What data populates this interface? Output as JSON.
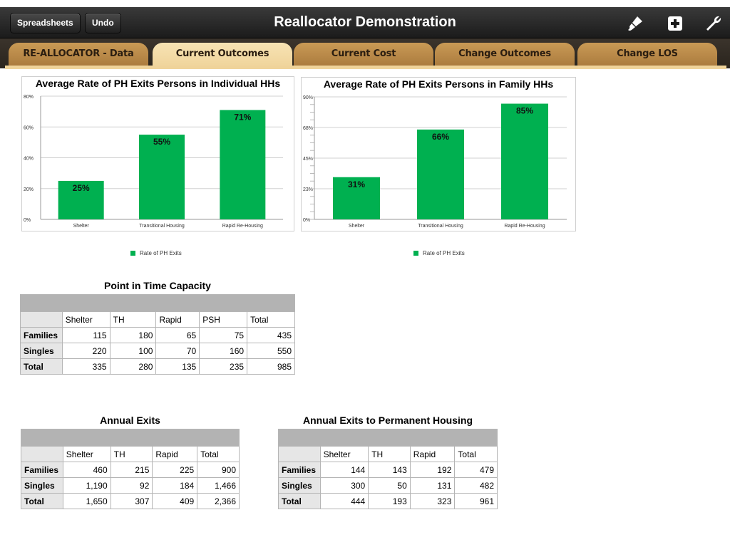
{
  "toolbar": {
    "spreadsheets_label": "Spreadsheets",
    "undo_label": "Undo",
    "title": "Reallocator Demonstration",
    "icons": [
      "paintbrush-icon",
      "add-icon",
      "wrench-icon"
    ]
  },
  "tabs": [
    {
      "label": "RE-ALLOCATOR - Data",
      "active": false
    },
    {
      "label": "Current Outcomes",
      "active": true
    },
    {
      "label": "Current Cost",
      "active": false
    },
    {
      "label": "Change Outcomes",
      "active": false
    },
    {
      "label": "Change LOS",
      "active": false
    }
  ],
  "chart_data": [
    {
      "type": "bar",
      "title": "Average Rate of PH Exits Persons in Individual HHs",
      "categories": [
        "Shelter",
        "Transitional Housing",
        "Rapid Re-Housing"
      ],
      "series": [
        {
          "name": "Rate of PH Exits",
          "values": [
            25,
            55,
            71
          ],
          "color": "#00b050"
        }
      ],
      "data_labels": [
        "25%",
        "55%",
        "71%"
      ],
      "yticks": [
        "0%",
        "20%",
        "40%",
        "60%",
        "80%"
      ],
      "ylim": [
        0,
        80
      ],
      "grid": true,
      "legend": "bottom"
    },
    {
      "type": "bar",
      "title": "Average Rate of PH Exits Persons in Family HHs",
      "categories": [
        "Shelter",
        "Transitional Housing",
        "Rapid Re-Housing"
      ],
      "series": [
        {
          "name": "Rate of PH Exits",
          "values": [
            31,
            66,
            85
          ],
          "color": "#00b050"
        }
      ],
      "data_labels": [
        "31%",
        "66%",
        "85%"
      ],
      "yticks": [
        "0%",
        "23%",
        "45%",
        "68%",
        "90%"
      ],
      "ylim": [
        0,
        90
      ],
      "grid": true,
      "legend": "bottom"
    }
  ],
  "tables": {
    "pit": {
      "title": "Point in Time Capacity",
      "columns": [
        "Shelter",
        "TH",
        "Rapid",
        "PSH",
        "Total"
      ],
      "rows": [
        {
          "label": "Families",
          "values": [
            "115",
            "180",
            "65",
            "75",
            "435"
          ]
        },
        {
          "label": "Singles",
          "values": [
            "220",
            "100",
            "70",
            "160",
            "550"
          ]
        },
        {
          "label": "Total",
          "values": [
            "335",
            "280",
            "135",
            "235",
            "985"
          ]
        }
      ]
    },
    "exits": {
      "title": "Annual Exits",
      "columns": [
        "Shelter",
        "TH",
        "Rapid",
        "Total"
      ],
      "rows": [
        {
          "label": "Families",
          "values": [
            "460",
            "215",
            "225",
            "900"
          ]
        },
        {
          "label": "Singles",
          "values": [
            "1,190",
            "92",
            "184",
            "1,466"
          ]
        },
        {
          "label": "Total",
          "values": [
            "1,650",
            "307",
            "409",
            "2,366"
          ]
        }
      ]
    },
    "ph_exits": {
      "title": "Annual Exits to Permanent Housing",
      "columns": [
        "Shelter",
        "TH",
        "Rapid",
        "Total"
      ],
      "rows": [
        {
          "label": "Families",
          "values": [
            "144",
            "143",
            "192",
            "479"
          ]
        },
        {
          "label": "Singles",
          "values": [
            "300",
            "50",
            "131",
            "482"
          ]
        },
        {
          "label": "Total",
          "values": [
            "444",
            "193",
            "323",
            "961"
          ]
        }
      ]
    }
  }
}
